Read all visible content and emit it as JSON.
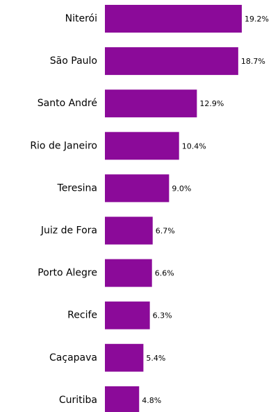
{
  "chart_data": {
    "type": "bar",
    "orientation": "horizontal",
    "categories": [
      "Niterói",
      "São Paulo",
      "Santo André",
      "Rio de Janeiro",
      "Teresina",
      "Juiz de Fora",
      "Porto Alegre",
      "Recife",
      "Caçapava",
      "Curitiba"
    ],
    "values": [
      19.2,
      18.7,
      12.9,
      10.4,
      9.0,
      6.7,
      6.6,
      6.3,
      5.4,
      4.8
    ],
    "value_labels": [
      "19.2%",
      "18.7%",
      "12.9%",
      "10.4%",
      "9.0%",
      "6.7%",
      "6.6%",
      "6.3%",
      "5.4%",
      "4.8%"
    ],
    "color": "#8b0a99"
  }
}
